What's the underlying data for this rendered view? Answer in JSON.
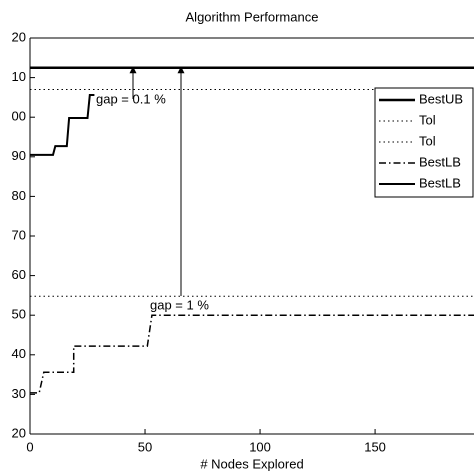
{
  "chart_data": {
    "type": "line",
    "title": "Algorithm Performance",
    "xlabel": "# Nodes Explored",
    "xlim": [
      0,
      193
    ],
    "xticks": [
      0,
      50,
      100,
      150
    ],
    "ylim": [
      20,
      120
    ],
    "yticks": [
      20,
      30,
      40,
      50,
      60,
      70,
      80,
      90,
      {
        "value": 100,
        "label": "00"
      },
      {
        "value": 110,
        "label": "10"
      },
      {
        "value": 120,
        "label": "20"
      }
    ],
    "legend": "upper right",
    "series": [
      {
        "name": "BestUB",
        "color": "#000000",
        "style": "solid",
        "width": 2.5,
        "x": [
          0,
          193
        ],
        "values": [
          112.5,
          112.5
        ]
      },
      {
        "name": "Tol",
        "color": "#000000",
        "style": "dotted",
        "width": 1,
        "x": [
          0,
          193
        ],
        "values": [
          107,
          107
        ]
      },
      {
        "name": "Tol",
        "color": "#000000",
        "style": "dotted",
        "width": 1,
        "x": [
          0,
          193
        ],
        "values": [
          54.8,
          54.8
        ]
      },
      {
        "name": "BestLB",
        "color": "#000000",
        "style": "dashdot",
        "width": 1.5,
        "x": [
          0,
          4,
          6,
          19,
          19,
          51,
          53,
          193
        ],
        "values": [
          30.4,
          30.4,
          35.6,
          35.6,
          42.2,
          42.2,
          50,
          50
        ]
      },
      {
        "name": "BestLB",
        "color": "#000000",
        "style": "solid",
        "width": 2,
        "x": [
          0,
          10,
          11,
          16,
          17,
          25,
          26,
          28
        ],
        "values": [
          90.5,
          90.5,
          92.7,
          92.7,
          99.8,
          99.8,
          105.6,
          105.6
        ]
      }
    ],
    "annotations": [
      "gap = 0.1 %",
      "gap = 1 %"
    ]
  }
}
